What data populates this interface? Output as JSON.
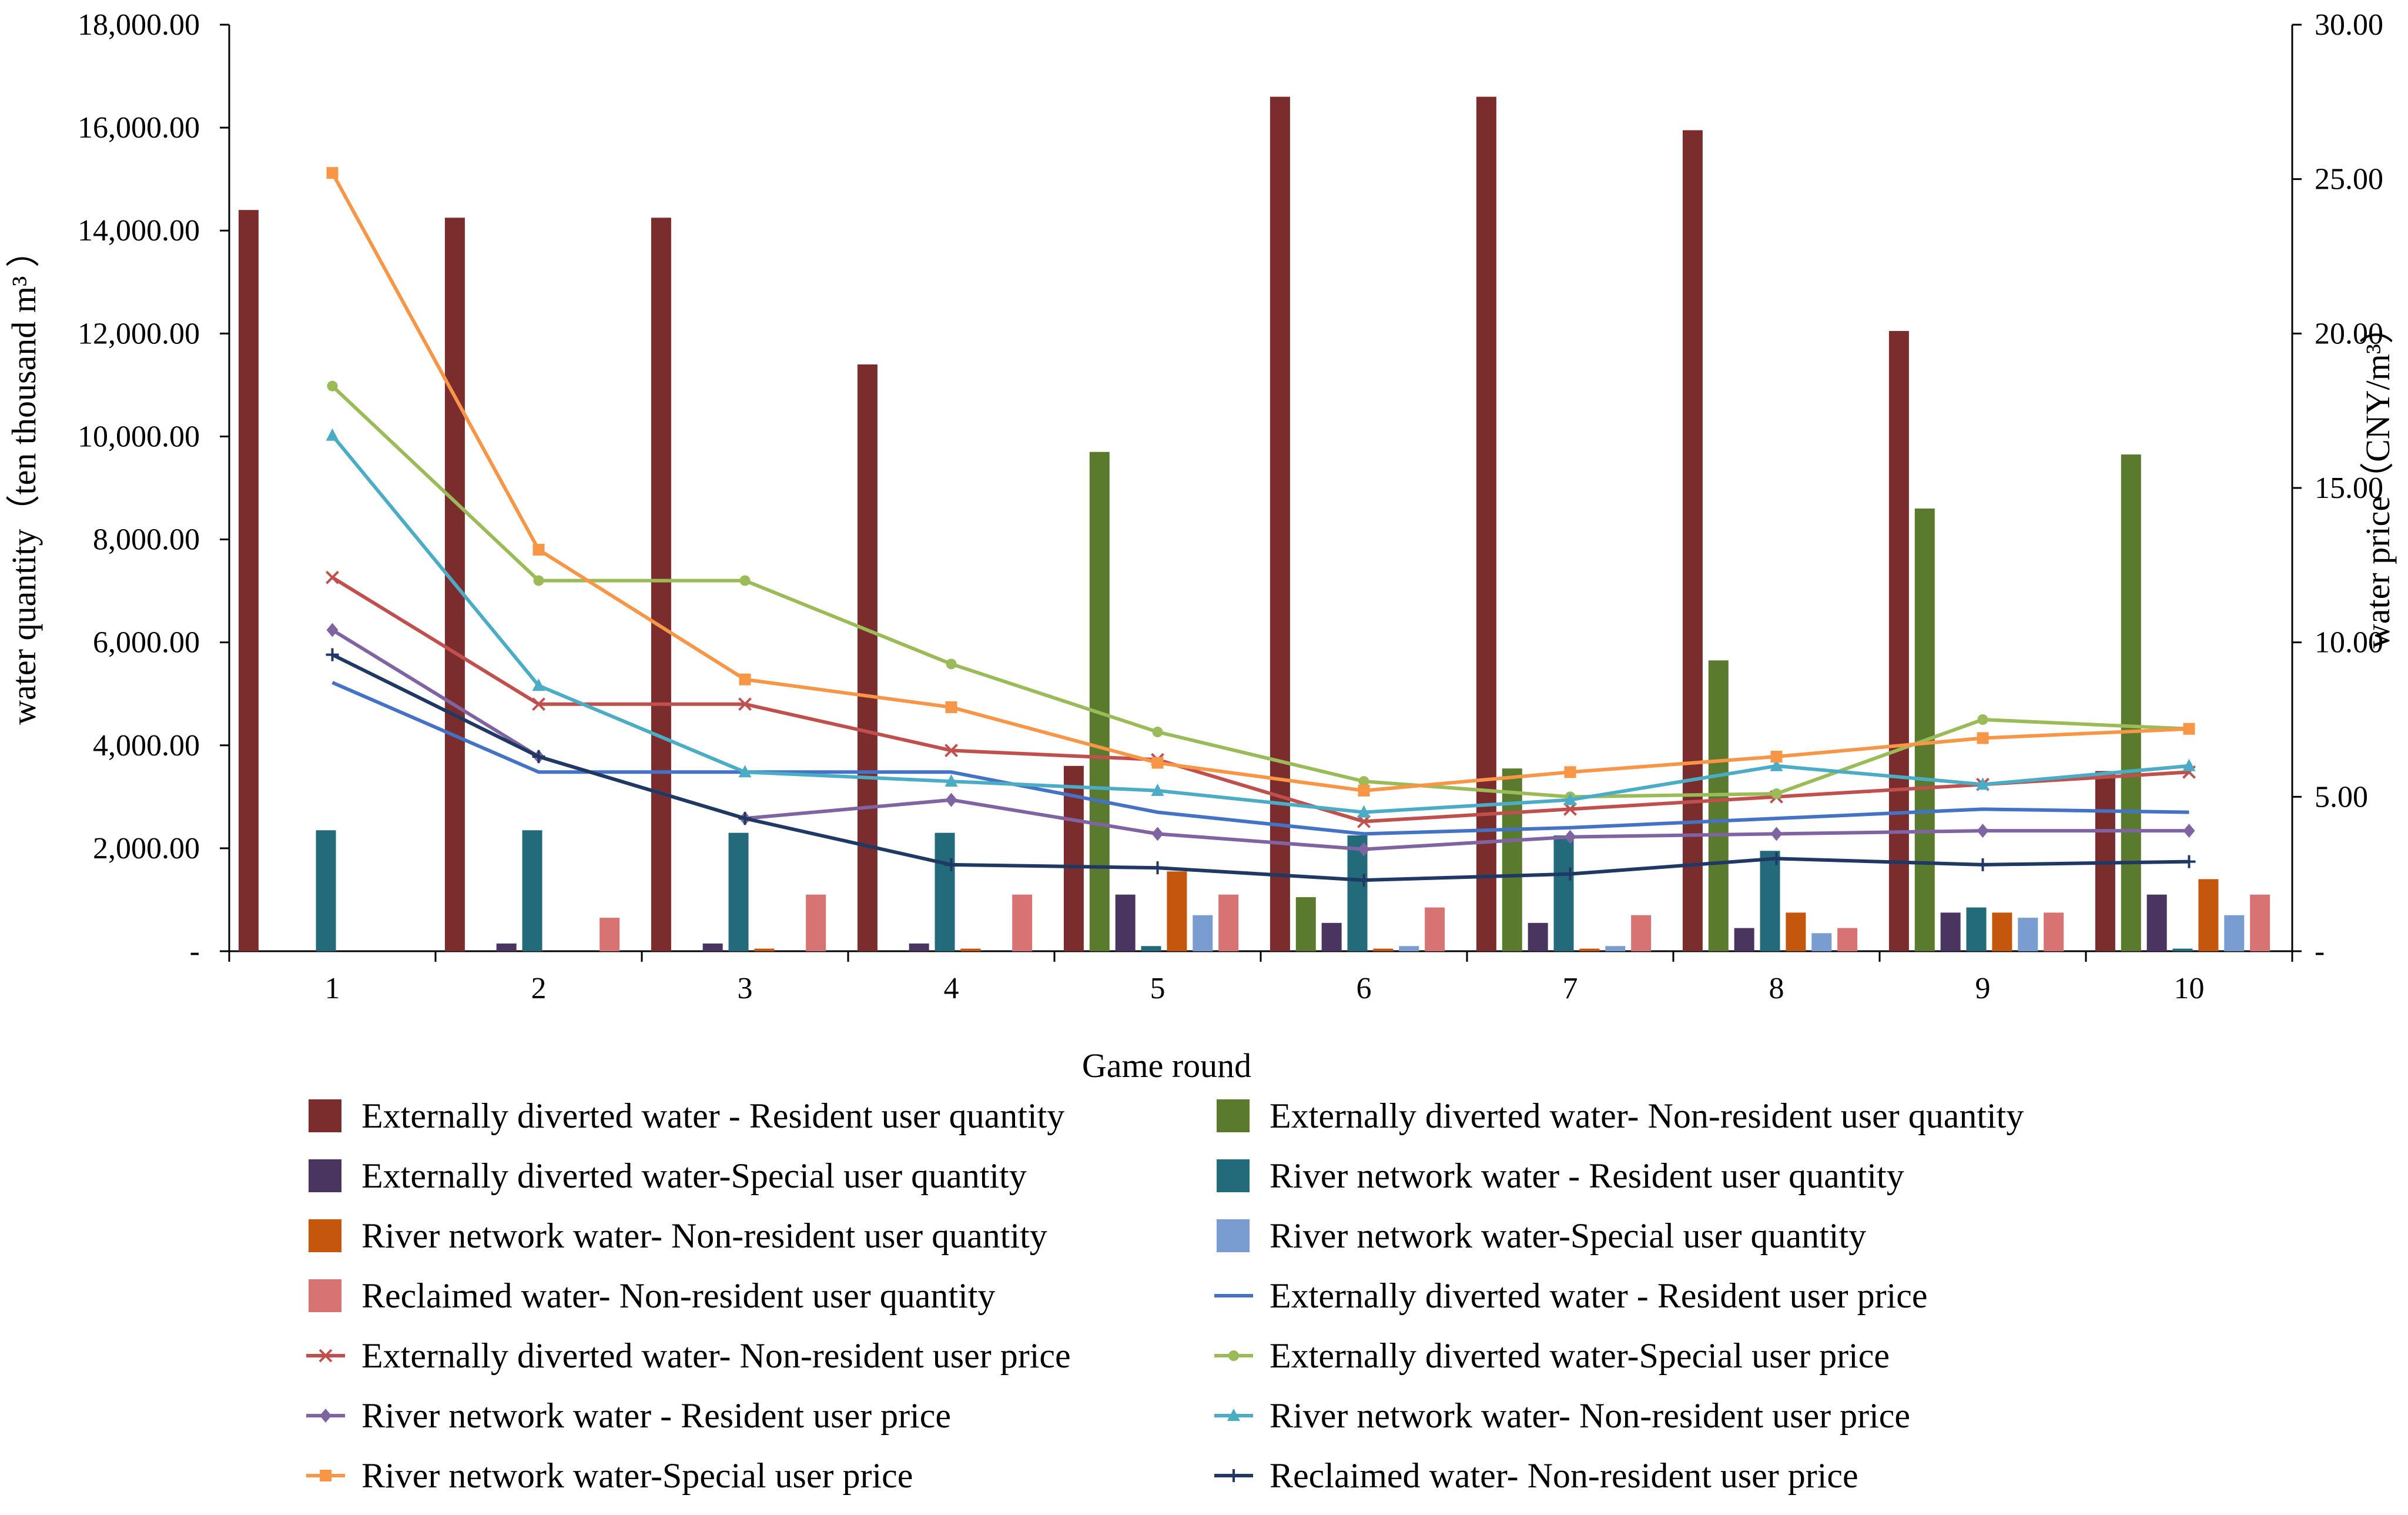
{
  "chart_data": {
    "type": "bar+line",
    "xlabel": "Game round",
    "ylabel_left": "water quantity（ten thousand m³ ）",
    "ylabel_right": "water price（CNY/m³）",
    "categories": [
      "1",
      "2",
      "3",
      "4",
      "5",
      "6",
      "7",
      "8",
      "9",
      "10"
    ],
    "ylim_left": [
      0,
      18000
    ],
    "ylim_right": [
      0,
      30
    ],
    "yticks_left": [
      "-",
      "2,000.00",
      "4,000.00",
      "6,000.00",
      "8,000.00",
      "10,000.00",
      "12,000.00",
      "14,000.00",
      "16,000.00",
      "18,000.00"
    ],
    "yticks_right": [
      "-",
      "5.00",
      "10.00",
      "15.00",
      "20.00",
      "25.00",
      "30.00"
    ],
    "bar_series": [
      {
        "name": "Externally diverted water - Resident user quantity",
        "color": "#7B2C2C",
        "values": [
          14400,
          14250,
          14250,
          11400,
          3600,
          16600,
          16600,
          15950,
          12050,
          3500
        ]
      },
      {
        "name": "Externally diverted water- Non-resident user quantity",
        "color": "#5A7A2E",
        "values": [
          0,
          0,
          0,
          0,
          9700,
          1050,
          3550,
          5650,
          8600,
          9650
        ]
      },
      {
        "name": "Externally diverted water-Special user quantity",
        "color": "#4A3560",
        "values": [
          0,
          150,
          150,
          150,
          1100,
          550,
          550,
          450,
          750,
          1100
        ]
      },
      {
        "name": "River network water - Resident user quantity",
        "color": "#236B7B",
        "values": [
          2350,
          2350,
          2300,
          2300,
          100,
          2250,
          2250,
          1950,
          850,
          50
        ]
      },
      {
        "name": "River network water- Non-resident user quantity",
        "color": "#C4560E",
        "values": [
          0,
          0,
          50,
          50,
          1550,
          50,
          50,
          750,
          750,
          1400
        ]
      },
      {
        "name": "River network water-Special user quantity",
        "color": "#7A9DD1",
        "values": [
          0,
          0,
          0,
          0,
          700,
          100,
          100,
          350,
          650,
          700
        ]
      },
      {
        "name": "Reclaimed water- Non-resident user quantity",
        "color": "#D87373",
        "values": [
          0,
          650,
          1100,
          1100,
          1100,
          850,
          700,
          450,
          750,
          1100
        ]
      }
    ],
    "line_series": [
      {
        "name": "Externally diverted water - Resident user price",
        "color": "#4472C4",
        "marker": "none",
        "values": [
          8.7,
          5.8,
          5.8,
          5.8,
          4.5,
          3.8,
          4.0,
          4.3,
          4.6,
          4.5
        ]
      },
      {
        "name": "Externally diverted water- Non-resident user price",
        "color": "#C0504D",
        "marker": "x",
        "values": [
          12.1,
          8.0,
          8.0,
          6.5,
          6.2,
          4.2,
          4.6,
          5.0,
          5.4,
          5.8
        ]
      },
      {
        "name": "Externally diverted water-Special user price",
        "color": "#9BBB59",
        "marker": "circle",
        "values": [
          18.3,
          12.0,
          12.0,
          9.3,
          7.1,
          5.5,
          5.0,
          5.1,
          7.5,
          7.2
        ]
      },
      {
        "name": "River network water - Resident user price",
        "color": "#8064A2",
        "marker": "diamond",
        "values": [
          10.4,
          6.3,
          4.3,
          4.9,
          3.8,
          3.3,
          3.7,
          3.8,
          3.9,
          3.9
        ]
      },
      {
        "name": "River network water- Non-resident user price",
        "color": "#4BACC6",
        "marker": "triangle",
        "values": [
          16.7,
          8.6,
          5.8,
          5.5,
          5.2,
          4.5,
          4.9,
          6.0,
          5.4,
          6.0
        ]
      },
      {
        "name": "River network water-Special user price",
        "color": "#F79646",
        "marker": "square",
        "values": [
          25.2,
          13.0,
          8.8,
          7.9,
          6.1,
          5.2,
          5.8,
          6.3,
          6.9,
          7.2
        ]
      },
      {
        "name": "Reclaimed water- Non-resident user price",
        "color": "#1F3864",
        "marker": "plus",
        "values": [
          9.6,
          6.3,
          4.3,
          2.8,
          2.7,
          2.3,
          2.5,
          3.0,
          2.8,
          2.9
        ]
      }
    ],
    "legend_position": "bottom"
  }
}
